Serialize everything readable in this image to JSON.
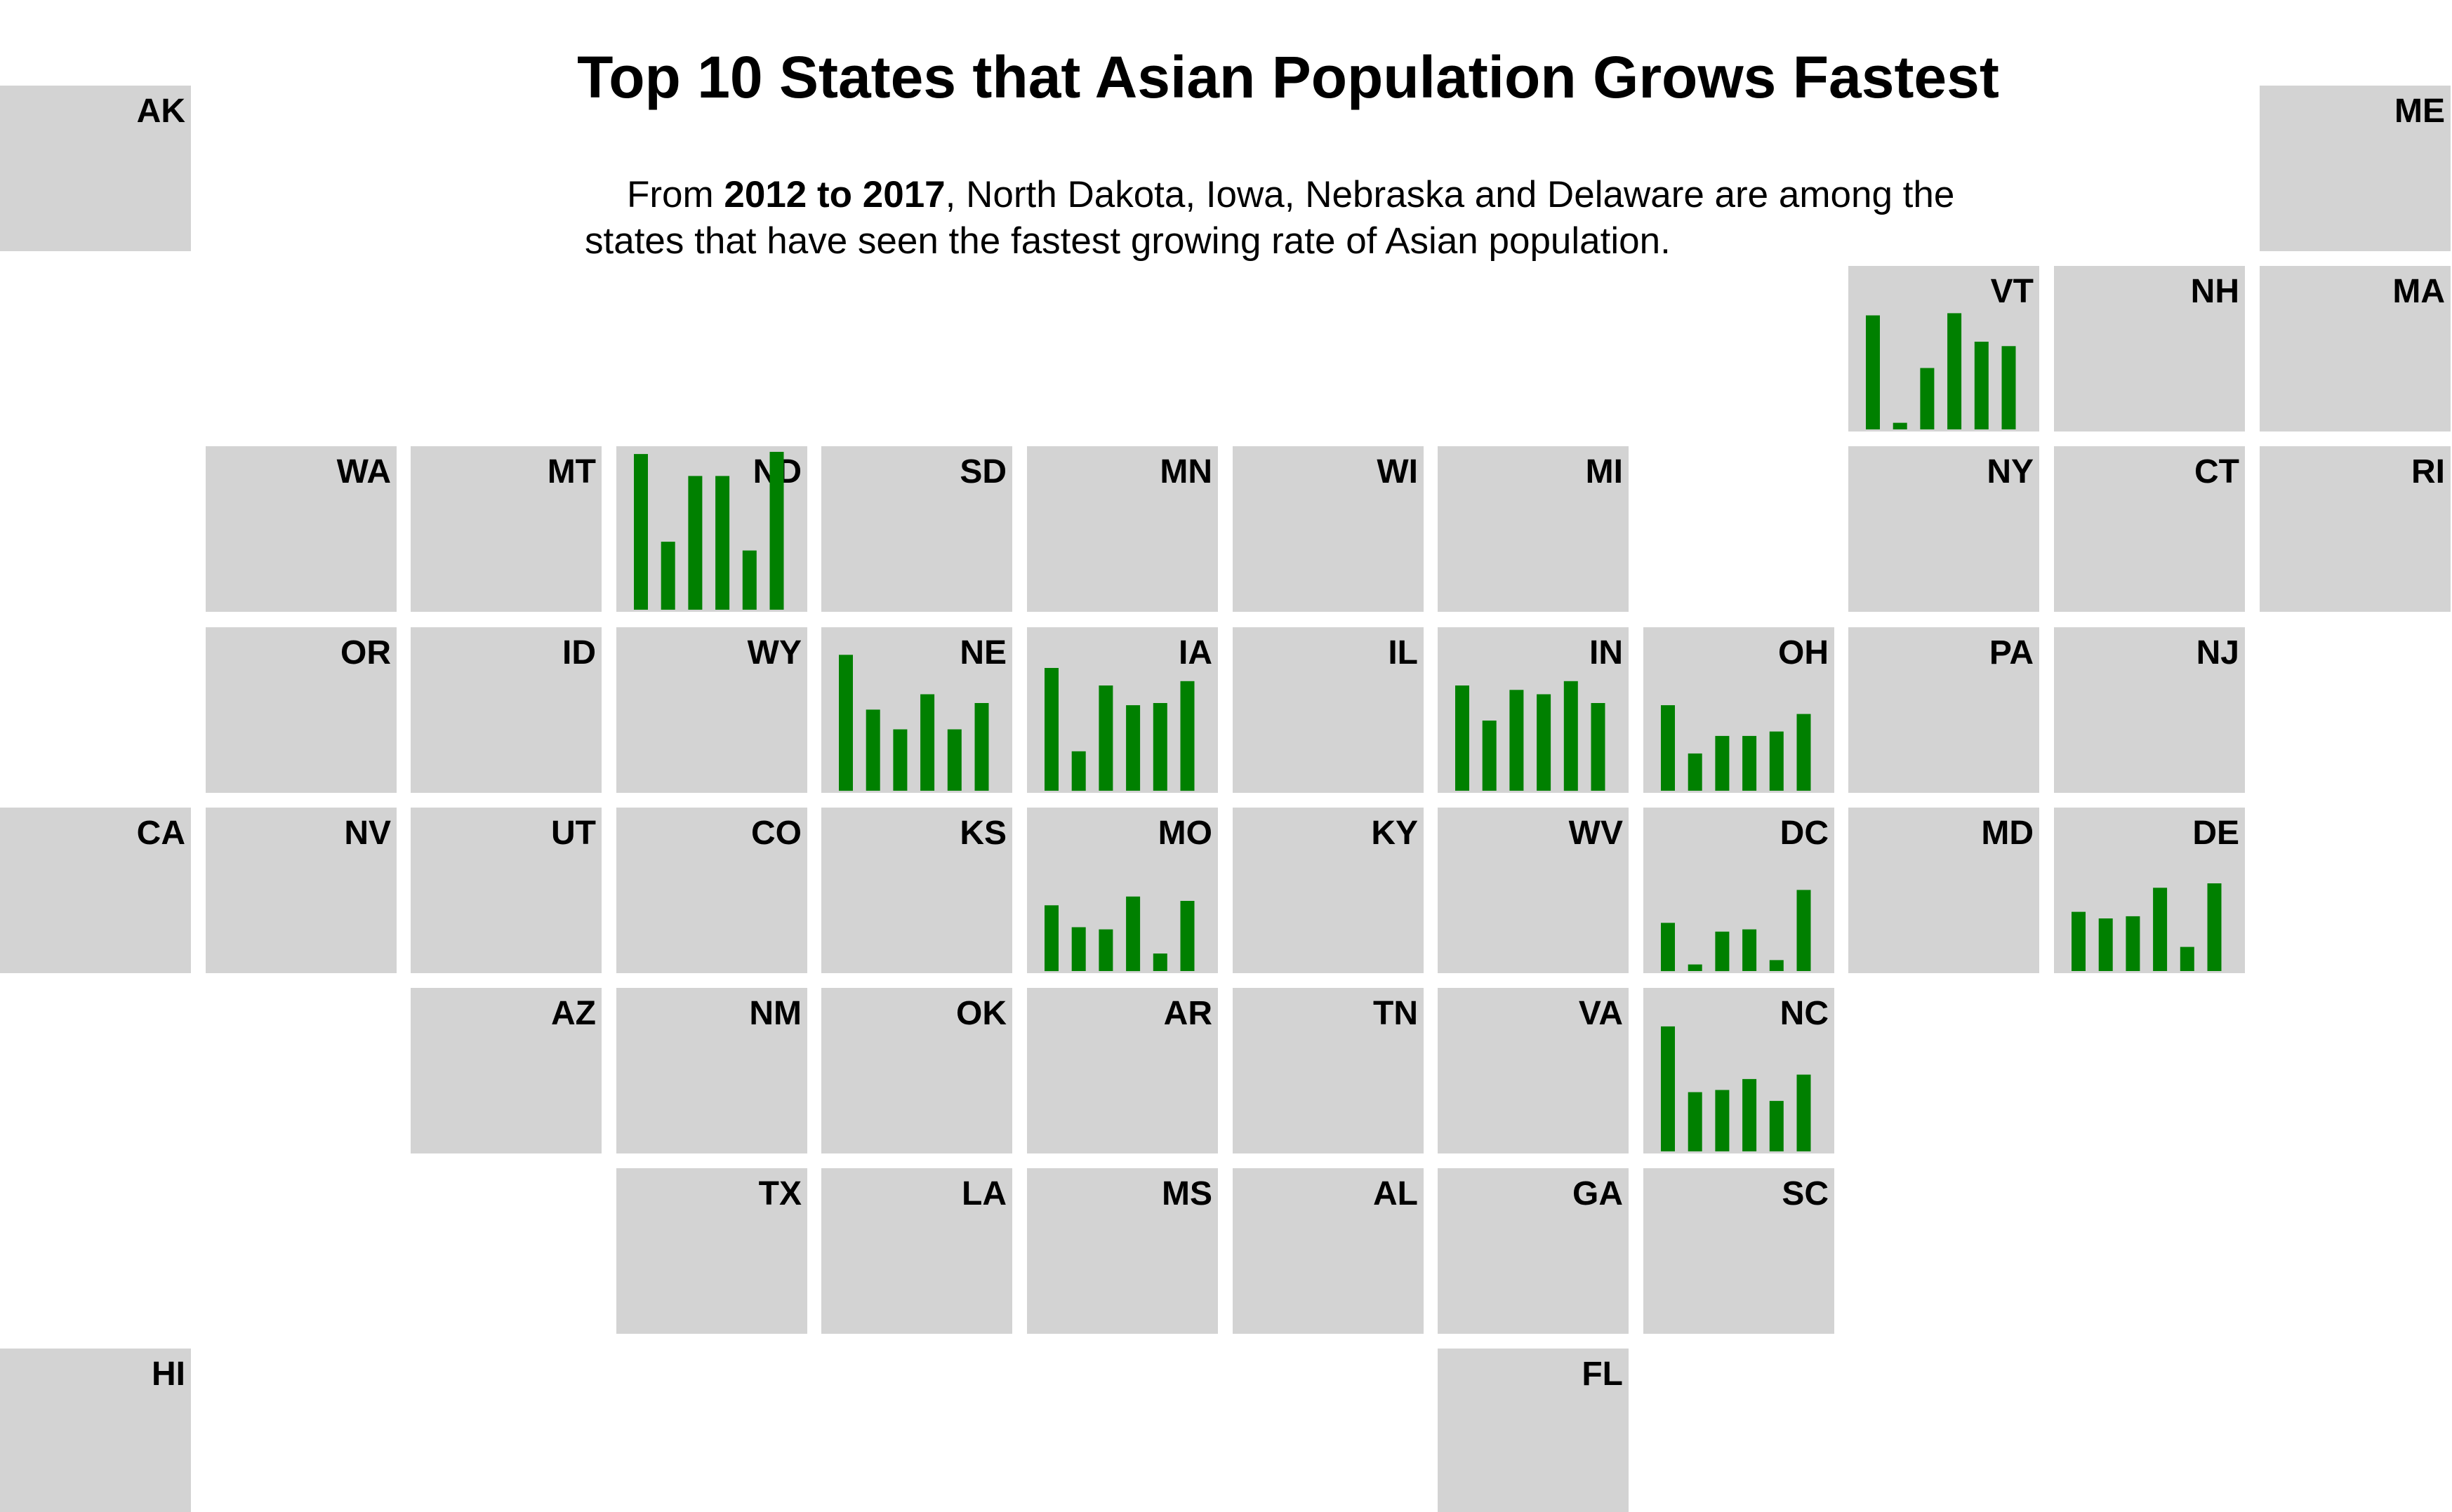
{
  "title": "Top 10 States that Asian Population Grows Fastest",
  "subtitle": {
    "prefix": "From ",
    "bold": "2012 to 2017",
    "line1_rest": ", North Dakota, Iowa, Nebraska and Delaware are among the",
    "line2": "states that have seen the fastest growing rate of Asian population."
  },
  "colors": {
    "tile": "#d3d3d3",
    "bar": "#008000",
    "background": "#ffffff"
  },
  "chart_data": {
    "type": "bar",
    "layout": "tile-grid map of US states with small-multiple bar charts",
    "title": "Top 10 States that Asian Population Grows Fastest",
    "bar_scale_max": 6.4,
    "tiles": [
      {
        "state": "AK",
        "col": 0,
        "row": 0,
        "values": null
      },
      {
        "state": "ME",
        "col": 11,
        "row": 0,
        "values": null
      },
      {
        "state": "VT",
        "col": 9,
        "row": 1,
        "values": [
          5.2,
          0.3,
          2.8,
          5.3,
          4.0,
          3.8
        ]
      },
      {
        "state": "NH",
        "col": 10,
        "row": 1,
        "values": null
      },
      {
        "state": "MA",
        "col": 11,
        "row": 1,
        "values": null
      },
      {
        "state": "WA",
        "col": 1,
        "row": 2,
        "values": null
      },
      {
        "state": "MT",
        "col": 2,
        "row": 2,
        "values": null
      },
      {
        "state": "ND",
        "col": 3,
        "row": 2,
        "values": [
          7.1,
          3.1,
          6.1,
          6.1,
          2.7,
          7.2
        ]
      },
      {
        "state": "SD",
        "col": 4,
        "row": 2,
        "values": null
      },
      {
        "state": "MN",
        "col": 5,
        "row": 2,
        "values": null
      },
      {
        "state": "WI",
        "col": 6,
        "row": 2,
        "values": null
      },
      {
        "state": "MI",
        "col": 7,
        "row": 2,
        "values": null
      },
      {
        "state": "NY",
        "col": 9,
        "row": 2,
        "values": null
      },
      {
        "state": "CT",
        "col": 10,
        "row": 2,
        "values": null
      },
      {
        "state": "RI",
        "col": 11,
        "row": 2,
        "values": null
      },
      {
        "state": "OR",
        "col": 1,
        "row": 3,
        "values": null
      },
      {
        "state": "ID",
        "col": 2,
        "row": 3,
        "values": null
      },
      {
        "state": "WY",
        "col": 3,
        "row": 3,
        "values": null
      },
      {
        "state": "NE",
        "col": 4,
        "row": 3,
        "values": [
          6.2,
          3.7,
          2.8,
          4.4,
          2.8,
          4.0
        ]
      },
      {
        "state": "IA",
        "col": 5,
        "row": 3,
        "values": [
          5.6,
          1.8,
          4.8,
          3.9,
          4.0,
          5.0
        ]
      },
      {
        "state": "IL",
        "col": 6,
        "row": 3,
        "values": null
      },
      {
        "state": "IN",
        "col": 7,
        "row": 3,
        "values": [
          4.8,
          3.2,
          4.6,
          4.4,
          5.0,
          4.0
        ]
      },
      {
        "state": "OH",
        "col": 8,
        "row": 3,
        "values": [
          3.9,
          1.7,
          2.5,
          2.5,
          2.7,
          3.5
        ]
      },
      {
        "state": "PA",
        "col": 9,
        "row": 3,
        "values": null
      },
      {
        "state": "NJ",
        "col": 10,
        "row": 3,
        "values": null
      },
      {
        "state": "CA",
        "col": 0,
        "row": 4,
        "values": null
      },
      {
        "state": "NV",
        "col": 1,
        "row": 4,
        "values": null
      },
      {
        "state": "UT",
        "col": 2,
        "row": 4,
        "values": null
      },
      {
        "state": "CO",
        "col": 3,
        "row": 4,
        "values": null
      },
      {
        "state": "KS",
        "col": 4,
        "row": 4,
        "values": null
      },
      {
        "state": "MO",
        "col": 5,
        "row": 4,
        "values": [
          3.0,
          2.0,
          1.9,
          3.4,
          0.8,
          3.2
        ]
      },
      {
        "state": "KY",
        "col": 6,
        "row": 4,
        "values": null
      },
      {
        "state": "WV",
        "col": 7,
        "row": 4,
        "values": null
      },
      {
        "state": "DC",
        "col": 8,
        "row": 4,
        "values": [
          2.2,
          0.3,
          1.8,
          1.9,
          0.5,
          3.7
        ]
      },
      {
        "state": "MD",
        "col": 9,
        "row": 4,
        "values": null
      },
      {
        "state": "DE",
        "col": 10,
        "row": 4,
        "values": [
          2.7,
          2.4,
          2.5,
          3.8,
          1.1,
          4.0
        ]
      },
      {
        "state": "AZ",
        "col": 2,
        "row": 5,
        "values": null
      },
      {
        "state": "NM",
        "col": 3,
        "row": 5,
        "values": null
      },
      {
        "state": "OK",
        "col": 4,
        "row": 5,
        "values": null
      },
      {
        "state": "AR",
        "col": 5,
        "row": 5,
        "values": null
      },
      {
        "state": "TN",
        "col": 6,
        "row": 5,
        "values": null
      },
      {
        "state": "VA",
        "col": 7,
        "row": 5,
        "values": null
      },
      {
        "state": "NC",
        "col": 8,
        "row": 5,
        "values": [
          5.7,
          2.7,
          2.8,
          3.3,
          2.3,
          3.5
        ]
      },
      {
        "state": "TX",
        "col": 3,
        "row": 6,
        "values": null
      },
      {
        "state": "LA",
        "col": 4,
        "row": 6,
        "values": null
      },
      {
        "state": "MS",
        "col": 5,
        "row": 6,
        "values": null
      },
      {
        "state": "AL",
        "col": 6,
        "row": 6,
        "values": null
      },
      {
        "state": "GA",
        "col": 7,
        "row": 6,
        "values": null
      },
      {
        "state": "SC",
        "col": 8,
        "row": 6,
        "values": null
      },
      {
        "state": "HI",
        "col": 0,
        "row": 7,
        "values": null
      },
      {
        "state": "FL",
        "col": 7,
        "row": 7,
        "values": null
      }
    ]
  }
}
